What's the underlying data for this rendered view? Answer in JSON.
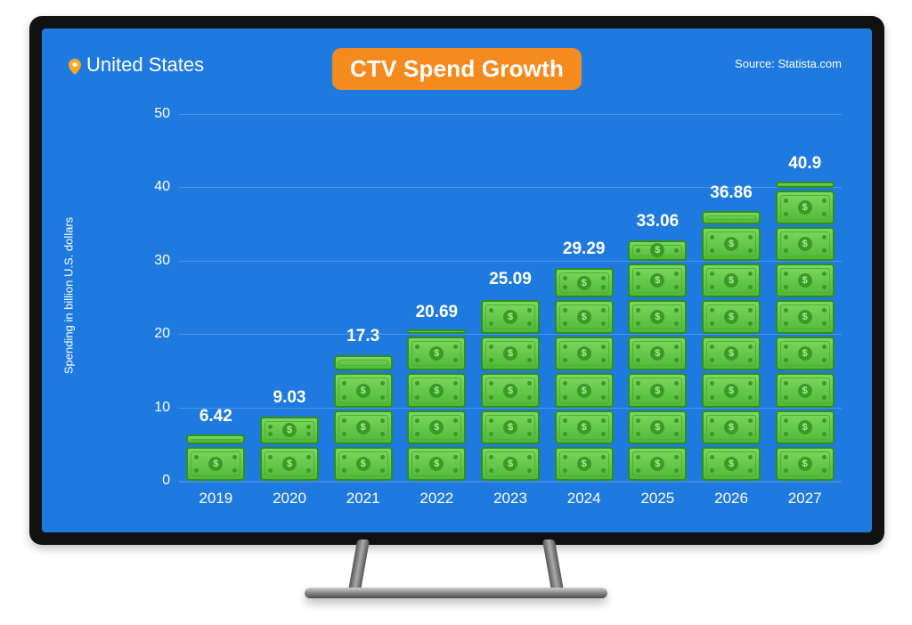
{
  "frame": {
    "tv_bezel_color": "#111111",
    "screen_bg": "#1f7ae0",
    "stand_base_gradient": [
      "#cfcfcf",
      "#7a7a7a",
      "#4d4d4d"
    ]
  },
  "header": {
    "location_pin_color": "#f7a823",
    "location": "United States",
    "title": "CTV Spend Growth",
    "title_bg": "#f58a1f",
    "title_color": "#ffffff",
    "source": "Source: Statista.com",
    "text_color": "#ffffff"
  },
  "chart": {
    "type": "bar",
    "ylabel": "Spending in billion U.S. dollars",
    "ylim": [
      0,
      50
    ],
    "ytick_step": 10,
    "yticks": [
      0,
      10,
      20,
      30,
      40,
      50
    ],
    "grid_color": "#4a96e9",
    "baseline_color": "#3d8ce6",
    "tick_color": "#ffffff",
    "label_color": "#ffffff",
    "value_label_color": "#ffffff",
    "value_label_fontsize": 19,
    "unit_per_bill": 5,
    "bill_style": {
      "width": 66,
      "full_height": 34,
      "gap": 3,
      "fill": "#67c94b",
      "fill_gradient_top": "#7dd85f",
      "fill_gradient_bottom": "#4fb937",
      "border": "#2e8f1e",
      "inner_border": "#4fae38",
      "coin_bg": "#3a9a27",
      "coin_text_color": "#a6f28a",
      "pip_color": "#3a9a27",
      "border_radius": 4
    },
    "columns": [
      {
        "year": "2019",
        "value": 6.42
      },
      {
        "year": "2020",
        "value": 9.03
      },
      {
        "year": "2021",
        "value": 17.3
      },
      {
        "year": "2022",
        "value": 20.69
      },
      {
        "year": "2023",
        "value": 25.09
      },
      {
        "year": "2024",
        "value": 29.29
      },
      {
        "year": "2025",
        "value": 33.06
      },
      {
        "year": "2026",
        "value": 36.86
      },
      {
        "year": "2027",
        "value": 40.9
      }
    ]
  }
}
